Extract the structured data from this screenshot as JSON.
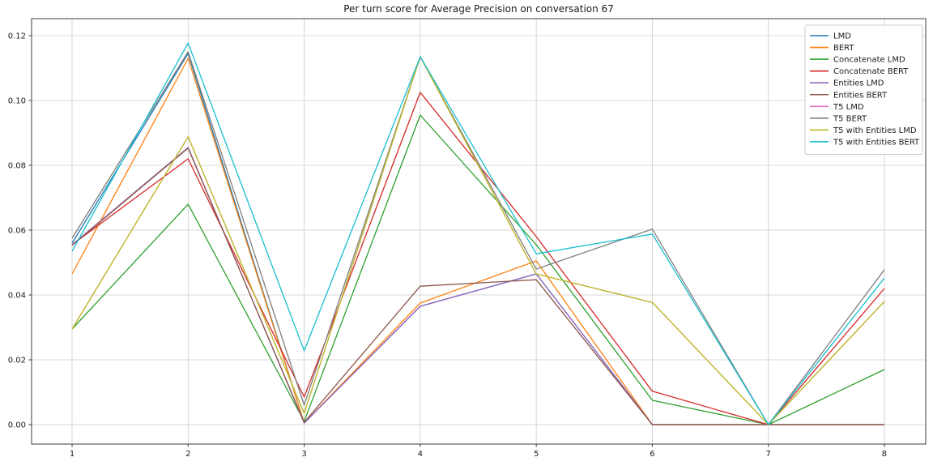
{
  "figure": {
    "title": "Per turn score for Average Precision on conversation 67"
  },
  "chart_data": {
    "type": "line",
    "title": "Per turn score for Average Precision on conversation 67",
    "xlabel": "",
    "ylabel": "",
    "x": [
      1,
      2,
      3,
      4,
      5,
      6,
      7,
      8
    ],
    "xtick_labels": [
      "1",
      "2",
      "3",
      "4",
      "5",
      "6",
      "7",
      "8"
    ],
    "ytick_values": [
      0.0,
      0.02,
      0.04,
      0.06,
      0.08,
      0.1,
      0.12
    ],
    "ytick_labels": [
      "0.00",
      "0.02",
      "0.04",
      "0.06",
      "0.08",
      "0.10",
      "0.12"
    ],
    "ylim": [
      -0.006,
      0.1255
    ],
    "xlim": [
      0.65,
      8.36
    ],
    "grid": true,
    "legend_position": "upper right",
    "series": [
      {
        "name": "LMD",
        "color": "#1f77b4",
        "values": [
          0.056,
          0.1145,
          0.0005,
          0.0365,
          0.0465,
          0.0,
          0.0,
          0.0
        ]
      },
      {
        "name": "BERT",
        "color": "#ff7f0e",
        "values": [
          0.0465,
          0.113,
          0.0005,
          0.0375,
          0.0505,
          0.0,
          0.0,
          0.0
        ]
      },
      {
        "name": "Concatenate LMD",
        "color": "#2ca02c",
        "values": [
          0.0295,
          0.068,
          0.001,
          0.0955,
          0.0555,
          0.0075,
          0.0,
          0.017
        ]
      },
      {
        "name": "Concatenate BERT",
        "color": "#d62728",
        "values": [
          0.0555,
          0.082,
          0.0085,
          0.1025,
          0.058,
          0.0103,
          0.0,
          0.042
        ]
      },
      {
        "name": "Entities LMD",
        "color": "#9467bd",
        "values": [
          0.0555,
          0.0855,
          0.0005,
          0.0365,
          0.0465,
          0.0,
          0.0,
          0.0
        ]
      },
      {
        "name": "Entities BERT",
        "color": "#8c564b",
        "values": [
          0.0553,
          0.0853,
          0.0007,
          0.0427,
          0.0447,
          0.0,
          0.0,
          0.0
        ]
      },
      {
        "name": "T5 LMD",
        "color": "#e377c2",
        "values": [
          0.0295,
          0.0888,
          0.0035,
          0.1135,
          0.0465,
          0.0377,
          0.0,
          0.038
        ]
      },
      {
        "name": "T5 BERT",
        "color": "#7f7f7f",
        "values": [
          0.0575,
          0.115,
          0.006,
          0.1135,
          0.048,
          0.0603,
          0.0,
          0.0478
        ]
      },
      {
        "name": "T5 with Entities LMD",
        "color": "#bcbd22",
        "values": [
          0.0295,
          0.0888,
          0.0035,
          0.1135,
          0.0465,
          0.0377,
          0.0,
          0.038
        ]
      },
      {
        "name": "T5 with Entities BERT",
        "color": "#17becf",
        "values": [
          0.0535,
          0.1177,
          0.0228,
          0.1135,
          0.0527,
          0.0588,
          0.0,
          0.0452
        ]
      }
    ]
  }
}
